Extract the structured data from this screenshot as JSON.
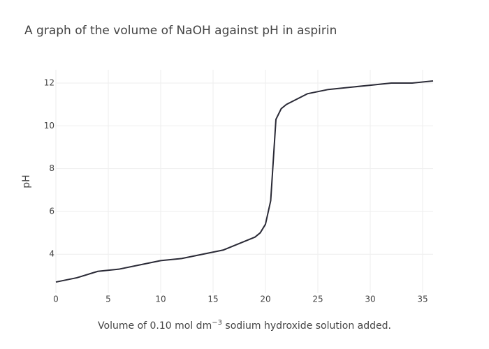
{
  "chart_data": {
    "type": "line",
    "title": "A graph of the volume of NaOH against pH in aspirin",
    "x_label_parts": [
      "Volume of 0.10 mol dm",
      "−3",
      " sodium hydroxide solution added."
    ],
    "y_label": "pH",
    "x": [
      0,
      2,
      4,
      6,
      10,
      12,
      16,
      19,
      19.5,
      20,
      20.5,
      21,
      21.5,
      22,
      24,
      26,
      30,
      32,
      34,
      36
    ],
    "series": [
      {
        "name": "pH",
        "color": "#2a2a36",
        "values": [
          2.7,
          2.9,
          3.2,
          3.3,
          3.7,
          3.8,
          4.2,
          4.8,
          5.0,
          5.4,
          6.5,
          10.3,
          10.8,
          11.0,
          11.5,
          11.7,
          11.9,
          12.0,
          12.0,
          12.1
        ]
      }
    ],
    "xlim": [
      0,
      36
    ],
    "ylim": [
      2.18,
      12.62
    ],
    "xticks": [
      0,
      5,
      10,
      15,
      20,
      25,
      30,
      35
    ],
    "yticks": [
      4,
      6,
      8,
      10,
      12
    ],
    "grid": true
  }
}
